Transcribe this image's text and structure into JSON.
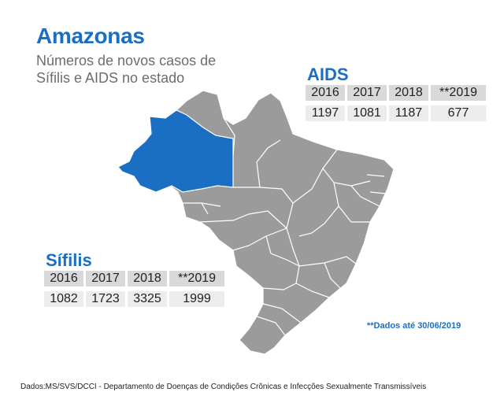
{
  "title": "Amazonas",
  "subtitle": "Números de novos casos de Sífilis e AIDS no estado",
  "colors": {
    "highlight": "#1a6fc2",
    "states": "#9b9b9b",
    "borders": "#ffffff"
  },
  "aids": {
    "title": "AIDS",
    "years": [
      "2016",
      "2017",
      "2018",
      "**2019"
    ],
    "values": [
      "1197",
      "1081",
      "1187",
      "677"
    ]
  },
  "sifilis": {
    "title": "Sífilis",
    "years": [
      "2016",
      "2017",
      "2018",
      "**2019"
    ],
    "values": [
      "1082",
      "1723",
      "3325",
      "1999"
    ]
  },
  "note": "**Dados até 30/06/2019",
  "source": "Dados:MS/SVS/DCCI - Departamento de Doenças de Condições Crônicas e Infecções Sexualmente Transmissíveis"
}
